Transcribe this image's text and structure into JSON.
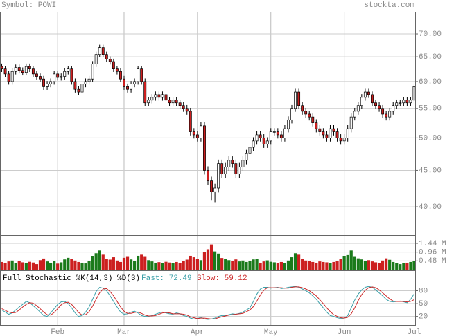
{
  "header": {
    "symbol": "Symbol: POWI",
    "site": "stockta.com"
  },
  "chart_data": [
    {
      "type": "candlestick",
      "categories": [
        null,
        null,
        null,
        null,
        null,
        null,
        null,
        null,
        null,
        null,
        null,
        null,
        null,
        null,
        null,
        null,
        "Feb",
        null,
        null,
        null,
        null,
        null,
        null,
        null,
        null,
        null,
        null,
        null,
        null,
        null,
        null,
        null,
        null,
        null,
        null,
        "Mar",
        null,
        null,
        null,
        null,
        null,
        null,
        null,
        null,
        null,
        null,
        null,
        null,
        null,
        null,
        null,
        null,
        null,
        null,
        null,
        null,
        "Apr",
        null,
        null,
        null,
        null,
        null,
        null,
        null,
        null,
        null,
        null,
        null,
        null,
        null,
        null,
        null,
        null,
        null,
        null,
        null,
        null,
        "May",
        null,
        null,
        null,
        null,
        null,
        null,
        null,
        null,
        null,
        null,
        null,
        null,
        null,
        null,
        null,
        null,
        null,
        null,
        null,
        null,
        "Jun",
        null,
        null,
        null,
        null,
        null,
        null,
        null,
        null,
        null,
        null,
        null,
        null,
        null,
        null,
        null,
        null,
        null,
        null,
        null,
        "Jul"
      ],
      "open": [
        63.0,
        62.5,
        61.5,
        60.0,
        62.0,
        62.8,
        62.2,
        61.8,
        63.0,
        62.5,
        61.5,
        61.0,
        60.5,
        59.0,
        59.5,
        60.0,
        61.5,
        60.8,
        61.0,
        62.0,
        62.5,
        60.0,
        58.5,
        58.0,
        59.5,
        60.0,
        60.5,
        63.5,
        65.5,
        67.0,
        65.5,
        64.5,
        64.0,
        62.5,
        62.0,
        60.5,
        59.0,
        58.5,
        59.5,
        60.0,
        62.5,
        60.0,
        56.0,
        56.5,
        57.0,
        57.5,
        57.0,
        57.5,
        56.5,
        56.0,
        56.5,
        56.0,
        55.5,
        55.0,
        54.5,
        51.0,
        50.5,
        50.0,
        52.0,
        45.0,
        43.5,
        42.0,
        42.5,
        46.0,
        44.5,
        45.5,
        46.5,
        46.0,
        44.5,
        45.5,
        46.5,
        47.5,
        48.5,
        49.5,
        50.5,
        50.0,
        49.0,
        49.5,
        51.0,
        51.0,
        50.5,
        50.0,
        51.5,
        53.0,
        55.0,
        58.0,
        55.5,
        54.5,
        54.0,
        53.5,
        52.5,
        51.5,
        51.0,
        50.5,
        50.0,
        51.5,
        51.0,
        50.0,
        49.5,
        50.0,
        51.5,
        53.5,
        54.5,
        55.5,
        57.0,
        58.0,
        57.5,
        56.0,
        55.5,
        55.0,
        54.0,
        53.5,
        54.5,
        55.5,
        56.0,
        56.0,
        56.5,
        56.0,
        56.5
      ],
      "high": [
        63.6,
        63.1,
        62.1,
        62.6,
        63.4,
        63.4,
        62.8,
        63.6,
        63.6,
        63.1,
        62.1,
        61.6,
        61.1,
        60.1,
        60.6,
        62.1,
        62.1,
        61.6,
        62.6,
        63.1,
        63.1,
        60.6,
        59.1,
        60.1,
        60.6,
        61.1,
        64.1,
        66.1,
        67.6,
        67.6,
        66.1,
        65.1,
        64.6,
        63.1,
        62.6,
        61.1,
        59.6,
        60.1,
        60.6,
        63.1,
        63.1,
        60.6,
        57.1,
        57.6,
        58.1,
        58.1,
        58.1,
        58.1,
        57.1,
        57.1,
        57.1,
        56.6,
        56.1,
        55.6,
        55.1,
        51.6,
        51.1,
        52.6,
        52.6,
        45.6,
        44.1,
        43.1,
        46.6,
        46.6,
        46.1,
        47.1,
        47.1,
        46.6,
        46.1,
        47.1,
        48.1,
        49.1,
        50.1,
        51.1,
        51.1,
        50.6,
        50.1,
        51.6,
        51.6,
        51.6,
        51.1,
        52.1,
        53.6,
        55.6,
        58.6,
        58.6,
        56.1,
        55.1,
        54.6,
        54.1,
        53.1,
        52.1,
        51.6,
        51.1,
        52.1,
        52.1,
        51.6,
        50.6,
        50.6,
        52.1,
        54.1,
        55.1,
        56.1,
        57.6,
        58.6,
        58.6,
        58.1,
        56.6,
        56.1,
        55.6,
        54.6,
        55.1,
        56.1,
        56.6,
        56.6,
        57.1,
        57.1,
        57.1,
        59.6
      ],
      "low": [
        61.9,
        60.9,
        59.4,
        59.4,
        61.4,
        61.6,
        61.2,
        61.2,
        61.9,
        60.9,
        60.4,
        59.9,
        58.4,
        58.4,
        58.9,
        59.4,
        60.2,
        60.2,
        60.4,
        61.4,
        59.4,
        57.9,
        57.4,
        57.4,
        58.9,
        59.4,
        59.9,
        62.9,
        64.9,
        64.9,
        63.9,
        63.4,
        61.9,
        61.4,
        59.9,
        58.4,
        57.9,
        57.9,
        58.9,
        59.4,
        59.4,
        55.4,
        55.4,
        55.9,
        56.4,
        56.4,
        56.4,
        55.9,
        55.4,
        55.4,
        55.4,
        54.9,
        54.4,
        53.9,
        50.4,
        49.9,
        49.4,
        49.4,
        44.4,
        42.9,
        40.8,
        40.6,
        41.9,
        43.9,
        43.9,
        44.9,
        45.4,
        43.9,
        43.9,
        44.9,
        45.9,
        46.9,
        47.9,
        48.9,
        49.4,
        48.4,
        48.4,
        48.9,
        50.4,
        49.9,
        49.4,
        49.4,
        50.9,
        52.4,
        54.4,
        54.9,
        53.9,
        53.4,
        52.9,
        51.9,
        50.9,
        50.4,
        49.9,
        49.4,
        49.4,
        50.4,
        49.4,
        48.9,
        48.9,
        49.4,
        50.9,
        52.9,
        53.9,
        54.9,
        56.4,
        56.9,
        55.4,
        54.9,
        54.4,
        53.4,
        52.9,
        52.9,
        53.9,
        54.9,
        55.4,
        55.4,
        55.4,
        55.4,
        55.9
      ],
      "close": [
        62.5,
        61.5,
        60.0,
        62.0,
        62.8,
        62.2,
        61.8,
        63.0,
        62.5,
        61.5,
        61.0,
        60.5,
        59.0,
        59.5,
        60.0,
        61.5,
        60.8,
        61.0,
        62.0,
        62.5,
        60.0,
        58.5,
        58.0,
        59.5,
        60.0,
        60.5,
        63.5,
        65.5,
        67.0,
        65.5,
        64.5,
        64.0,
        62.5,
        62.0,
        60.5,
        59.0,
        58.5,
        59.5,
        60.0,
        62.5,
        60.0,
        56.0,
        56.5,
        57.0,
        57.5,
        57.0,
        57.5,
        56.5,
        56.0,
        56.5,
        56.0,
        55.5,
        55.0,
        54.5,
        51.0,
        50.5,
        50.0,
        52.0,
        45.0,
        43.5,
        42.0,
        42.5,
        46.0,
        44.5,
        45.5,
        46.5,
        46.0,
        44.5,
        45.5,
        46.5,
        47.5,
        48.5,
        49.5,
        50.5,
        50.0,
        49.0,
        49.5,
        51.0,
        51.0,
        50.5,
        50.0,
        51.5,
        53.0,
        55.0,
        58.0,
        55.5,
        54.5,
        54.0,
        53.5,
        52.5,
        51.5,
        51.0,
        50.5,
        50.0,
        51.5,
        51.0,
        50.0,
        49.5,
        50.0,
        51.5,
        53.5,
        54.5,
        55.5,
        57.0,
        58.0,
        57.5,
        56.0,
        55.5,
        55.0,
        54.0,
        53.5,
        54.5,
        55.5,
        56.0,
        56.0,
        56.5,
        56.0,
        56.5,
        59.0
      ],
      "up_color": "#ffffff",
      "down_color": "#cc1f1f",
      "ylim": [
        36.5,
        75.2
      ],
      "log": true,
      "yticks": [
        {
          "value": 40,
          "label": "40.00"
        },
        {
          "value": 45,
          "label": "45.00"
        },
        {
          "value": 50,
          "label": "50.00"
        },
        {
          "value": 55,
          "label": "55.00"
        },
        {
          "value": 60,
          "label": "60.00"
        },
        {
          "value": 65,
          "label": "65.00"
        },
        {
          "value": 70,
          "label": "70.00"
        }
      ],
      "grid": true
    },
    {
      "type": "bar",
      "values": [
        420000,
        380000,
        450000,
        500000,
        360000,
        480000,
        400000,
        350000,
        430000,
        390000,
        300000,
        520000,
        610000,
        450000,
        380000,
        470000,
        330000,
        400000,
        560000,
        650000,
        580000,
        500000,
        420000,
        380000,
        340000,
        460000,
        720000,
        900000,
        1050000,
        820000,
        600000,
        550000,
        680000,
        500000,
        420000,
        650000,
        700000,
        560000,
        480000,
        760000,
        820000,
        700000,
        520000,
        450000,
        380000,
        410000,
        360000,
        430000,
        390000,
        350000,
        420000,
        380000,
        470000,
        550000,
        760000,
        680000,
        600000,
        520000,
        980000,
        1120000,
        1380000,
        1000000,
        880000,
        640000,
        580000,
        520000,
        480000,
        560000,
        450000,
        500000,
        420000,
        480000,
        560000,
        600000,
        380000,
        450000,
        510000,
        430000,
        400000,
        360000,
        420000,
        380000,
        500000,
        680000,
        900000,
        820000,
        580000,
        500000,
        460000,
        420000,
        380000,
        450000,
        420000,
        400000,
        360000,
        420000,
        480000,
        600000,
        720000,
        800000,
        1050000,
        700000,
        620000,
        560000,
        480000,
        520000,
        450000,
        400000,
        380000,
        500000,
        620000,
        540000,
        420000,
        360000,
        300000,
        350000,
        380000,
        420000,
        480000
      ],
      "up_color": "#1a7a1a",
      "down_color": "#cc1f1f",
      "ylim": [
        0,
        1820000
      ],
      "yticks": [
        {
          "value": 480000,
          "label": "0.48 M"
        },
        {
          "value": 960000,
          "label": "0.96 M"
        },
        {
          "value": 1440000,
          "label": "1.44 M"
        }
      ],
      "grid": true
    },
    {
      "type": "line",
      "title": "Full Stochastic %K(14,3) %D(3)",
      "series": [
        {
          "name": "Fast:",
          "color": "#3a9fa8",
          "values": [
            35,
            30,
            25,
            28,
            35,
            42,
            48,
            55,
            52,
            45,
            38,
            30,
            22,
            20,
            28,
            38,
            48,
            54,
            55,
            50,
            40,
            28,
            20,
            22,
            30,
            42,
            60,
            78,
            88,
            86,
            80,
            68,
            55,
            42,
            30,
            25,
            26,
            30,
            32,
            28,
            22,
            20,
            20,
            22,
            25,
            28,
            30,
            28,
            26,
            25,
            28,
            26,
            22,
            20,
            16,
            14,
            15,
            18,
            14,
            13,
            14,
            16,
            20,
            22,
            22,
            24,
            26,
            25,
            27,
            30,
            35,
            40,
            55,
            72,
            84,
            88,
            88,
            86,
            87,
            88,
            85,
            86,
            88,
            89,
            90,
            88,
            84,
            80,
            75,
            68,
            60,
            50,
            40,
            30,
            22,
            20,
            17,
            15,
            16,
            22,
            40,
            58,
            72,
            82,
            88,
            90,
            88,
            82,
            75,
            68,
            60,
            55,
            54,
            55,
            56,
            54,
            52,
            60,
            72.49
          ]
        },
        {
          "name": "Slow:",
          "color": "#cc2a2a",
          "values": [
            38,
            34,
            30,
            28,
            29,
            35,
            42,
            48,
            52,
            51,
            45,
            38,
            30,
            24,
            23,
            29,
            38,
            47,
            52,
            53,
            48,
            39,
            29,
            23,
            24,
            31,
            44,
            60,
            75,
            84,
            85,
            78,
            68,
            55,
            42,
            32,
            27,
            27,
            29,
            30,
            27,
            23,
            21,
            21,
            22,
            25,
            28,
            29,
            28,
            26,
            26,
            26,
            25,
            23,
            19,
            17,
            15,
            16,
            16,
            15,
            14,
            14,
            17,
            19,
            21,
            23,
            24,
            25,
            26,
            27,
            31,
            35,
            43,
            56,
            70,
            81,
            87,
            87,
            87,
            87,
            87,
            86,
            86,
            88,
            89,
            89,
            87,
            84,
            80,
            74,
            68,
            59,
            50,
            40,
            31,
            24,
            20,
            17,
            16,
            18,
            26,
            40,
            57,
            71,
            81,
            87,
            89,
            87,
            82,
            75,
            68,
            61,
            56,
            55,
            55,
            55,
            54,
            55,
            59.12
          ]
        }
      ],
      "ylim": [
        0,
        126
      ],
      "yticks": [
        20,
        50,
        80
      ],
      "grid": true
    }
  ]
}
